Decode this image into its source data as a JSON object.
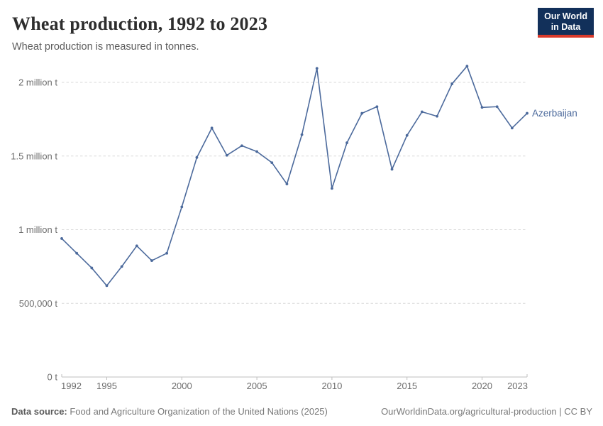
{
  "header": {
    "logo": {
      "line1": "Our World",
      "line2": "in Data",
      "bg_color": "#12305a",
      "bar_color": "#d93a2b"
    }
  },
  "chart_data": {
    "type": "line",
    "title": "Wheat production, 1992 to 2023",
    "subtitle": "Wheat production is measured in tonnes.",
    "xlabel": "",
    "ylabel": "",
    "xlim": [
      1992,
      2023
    ],
    "ylim": [
      0,
      2150000
    ],
    "grid": "horizontal-dashed",
    "legend_position": "end-of-line-label",
    "x": [
      1992,
      1993,
      1994,
      1995,
      1996,
      1997,
      1998,
      1999,
      2000,
      2001,
      2002,
      2003,
      2004,
      2005,
      2006,
      2007,
      2008,
      2009,
      2010,
      2011,
      2012,
      2013,
      2014,
      2015,
      2016,
      2017,
      2018,
      2019,
      2020,
      2021,
      2022,
      2023
    ],
    "series": [
      {
        "name": "Azerbaijan",
        "color": "#4c6a9c",
        "values": [
          940000,
          840000,
          740000,
          620000,
          750000,
          890000,
          790000,
          840000,
          1155000,
          1490000,
          1690000,
          1505000,
          1570000,
          1530000,
          1455000,
          1310000,
          1645000,
          2095000,
          1280000,
          1590000,
          1790000,
          1835000,
          1410000,
          1640000,
          1800000,
          1770000,
          1990000,
          2110000,
          1830000,
          1835000,
          1690000,
          1790000
        ]
      }
    ],
    "x_ticks": [
      1992,
      1995,
      2000,
      2005,
      2010,
      2015,
      2020,
      2023
    ],
    "y_ticks": [
      {
        "value": 0,
        "label": "0 t"
      },
      {
        "value": 500000,
        "label": "500,000 t"
      },
      {
        "value": 1000000,
        "label": "1 million t"
      },
      {
        "value": 1500000,
        "label": "1.5 million t"
      },
      {
        "value": 2000000,
        "label": "2 million t"
      }
    ],
    "colors": {
      "gridline": "#d9d9d9",
      "axis": "#bfbfbf",
      "tick_label": "#6e6e6e",
      "series": "#4c6a9c"
    }
  },
  "footer": {
    "source_label": "Data source:",
    "source_text": " Food and Agriculture Organization of the United Nations (2025)",
    "link_text": "OurWorldinData.org/agricultural-production | CC BY"
  }
}
